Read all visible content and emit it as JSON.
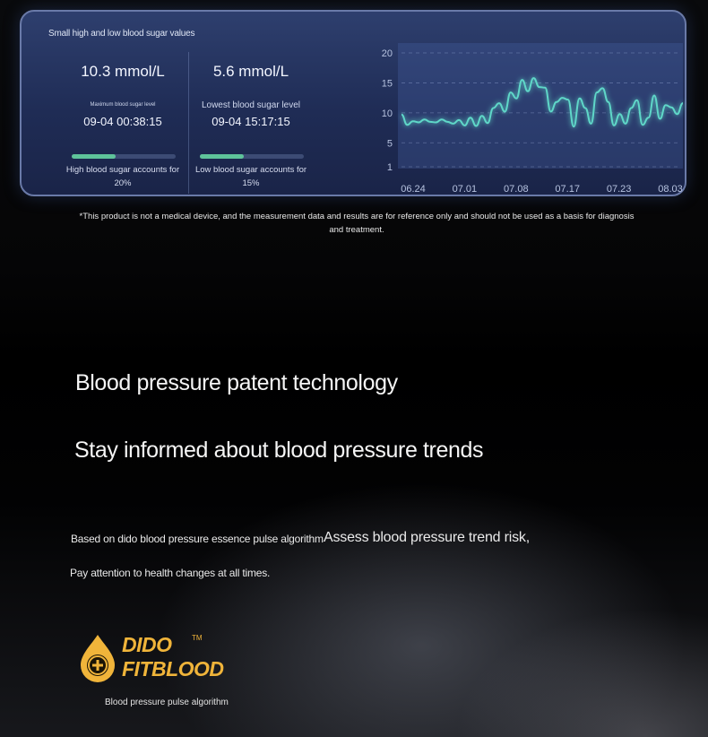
{
  "panel": {
    "title": "Small high and low blood sugar values",
    "max_stat": {
      "value": "10.3 mmol/L",
      "label": "Maximum blood sugar level",
      "time": "09-04 00:38:15",
      "bar_fraction": 0.42,
      "caption_line1": "High blood sugar accounts for",
      "caption_line2": "20%"
    },
    "min_stat": {
      "value": "5.6 mmol/L",
      "label": "Lowest blood sugar level",
      "time": "09-04 15:17:15",
      "bar_fraction": 0.42,
      "caption_line1": "Low blood sugar accounts for",
      "caption_line2": "15%"
    },
    "accent_color": "#5ec39a"
  },
  "chart_data": {
    "type": "line",
    "x_ticks": [
      "06.24",
      "07.01",
      "07.08",
      "07.17",
      "07.23",
      "08.03"
    ],
    "y_ticks": [
      20,
      15,
      10,
      5,
      1
    ],
    "ylim": [
      1,
      20
    ],
    "grid": true,
    "line_color": "#5fd7c8",
    "values": [
      9.7,
      8.0,
      8.6,
      8.4,
      8.9,
      8.5,
      8.4,
      8.9,
      8.5,
      8.2,
      8.8,
      7.9,
      9.2,
      7.8,
      9.5,
      8.3,
      10.8,
      11.6,
      10.2,
      13.4,
      12.4,
      15.5,
      13.6,
      15.8,
      14.3,
      14.2,
      10.2,
      11.8,
      12.5,
      12.2,
      7.7,
      12.4,
      10.8,
      8.2,
      13.4,
      14.1,
      11.8,
      7.9,
      9.8,
      8.2,
      10.8,
      12.1,
      8.0,
      9.2,
      12.9,
      9.0,
      11.3,
      10.9,
      9.8,
      11.6
    ]
  },
  "disclaimer": {
    "line1": "*This product is not a medical device, and the measurement data and results are for reference only and should not be used as a basis for diagnosis",
    "line2": "and treatment."
  },
  "headline1": "Blood pressure patent technology",
  "headline2": "Stay informed about blood pressure trends",
  "body": {
    "line1": "Based on dido blood pressure essence pulse algorithm",
    "line1_emphasis": "Assess blood pressure trend risk,",
    "line2": "Pay attention to health changes at all times."
  },
  "logo": {
    "word1": "DIDO",
    "word2": "FITBLOOD",
    "trademark": "TM",
    "icon": "blood-drop-plus-icon",
    "color": "#f0b43a",
    "tagline": "Blood pressure pulse algorithm"
  }
}
